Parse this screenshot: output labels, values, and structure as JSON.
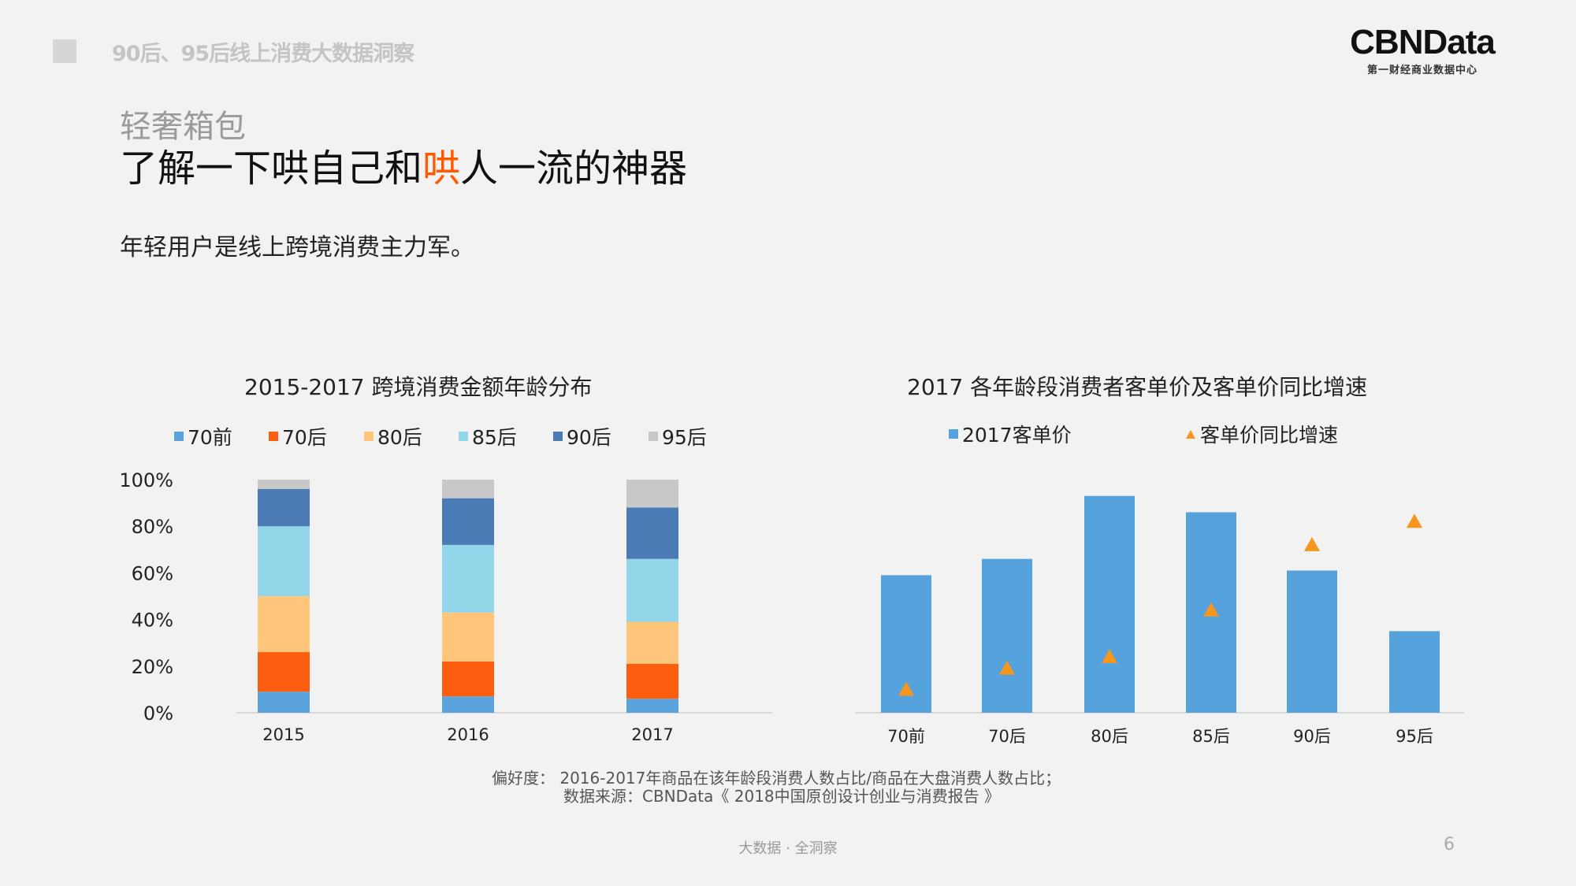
{
  "header": {
    "top_title": "90后、95后线上消费大数据洞察",
    "logo_main": "CBNData",
    "logo_sub": "第一财经商业数据中心"
  },
  "slide": {
    "subtitle": "轻奢箱包",
    "headline_pre": "了解一下哄自己和",
    "headline_highlight": "哄",
    "headline_post": "人一流的神器",
    "intro": "年轻用户是线上跨境消费主力军。"
  },
  "colors": {
    "70前": "#5ba3dc",
    "70后": "#fc5d0f",
    "80后": "#ffc57a",
    "85后": "#92d6ea",
    "90后": "#4a7bb5",
    "95后": "#c8c8c8",
    "bar_blue": "#55a2dd",
    "triangle": "#f5961e",
    "highlight": "#ff5a00"
  },
  "chart_data": [
    {
      "type": "bar",
      "stacked": true,
      "title": "2015-2017 跨境消费金额年龄分布",
      "categories": [
        "2015",
        "2016",
        "2017"
      ],
      "y_ticks": [
        "0%",
        "20%",
        "40%",
        "60%",
        "80%",
        "100%"
      ],
      "ylim": [
        0,
        100
      ],
      "series": [
        {
          "name": "70前",
          "values": [
            9,
            7,
            6
          ]
        },
        {
          "name": "70后",
          "values": [
            17,
            15,
            15
          ]
        },
        {
          "name": "80后",
          "values": [
            24,
            21,
            18
          ]
        },
        {
          "name": "85后",
          "values": [
            30,
            29,
            27
          ]
        },
        {
          "name": "90后",
          "values": [
            16,
            20,
            22
          ]
        },
        {
          "name": "95后",
          "values": [
            4,
            8,
            12
          ]
        }
      ]
    },
    {
      "type": "bar",
      "title": "2017 各年龄段消费者客单价及客单价同比增速",
      "categories": [
        "70前",
        "70后",
        "80后",
        "85后",
        "90后",
        "95后"
      ],
      "series": [
        {
          "name": "2017客单价",
          "kind": "bar",
          "values": [
            59,
            66,
            93,
            86,
            61,
            35
          ]
        },
        {
          "name": "客单价同比增速",
          "kind": "marker",
          "values": [
            10,
            19,
            24,
            44,
            72,
            82
          ]
        }
      ],
      "ylim": [
        0,
        100
      ]
    }
  ],
  "notes": {
    "line1": "偏好度：  2016-2017年商品在该年龄段消费人数占比/商品在大盘消费人数占比；",
    "line2": "数据来源：CBNData《 2018中国原创设计创业与消费报告 》"
  },
  "footer": {
    "text": "大数据 · 全洞察",
    "page": "6"
  }
}
